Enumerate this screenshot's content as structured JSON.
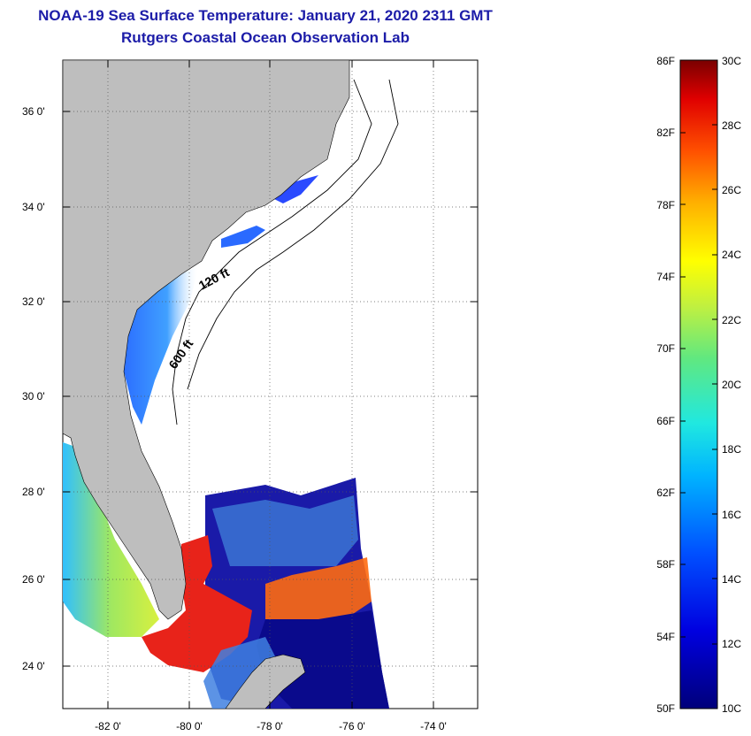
{
  "header": {
    "title": "NOAA-19 Sea Surface Temperature:  January 21, 2020 2311 GMT",
    "subtitle": "Rutgers Coastal Ocean Observation Lab"
  },
  "map": {
    "lat_labels": [
      "36 0'",
      "34 0'",
      "32 0'",
      "30 0'",
      "28 0'",
      "26 0'",
      "24 0'"
    ],
    "lon_labels": [
      "-82 0'",
      "-80 0'",
      "-78 0'",
      "-76 0'",
      "-74 0'"
    ],
    "contours": [
      "120 ft",
      "600 ft"
    ]
  },
  "colorbar": {
    "fahrenheit": [
      "86F",
      "82F",
      "78F",
      "74F",
      "70F",
      "66F",
      "62F",
      "58F",
      "54F",
      "50F"
    ],
    "celsius": [
      "30C",
      "28C",
      "26C",
      "24C",
      "22C",
      "20C",
      "18C",
      "16C",
      "14C",
      "12C",
      "10C"
    ]
  },
  "colors": {
    "title": "#1c1ca8",
    "land": "#bebebe",
    "warm": "#e8231a",
    "cold": "#0a0a8c"
  }
}
